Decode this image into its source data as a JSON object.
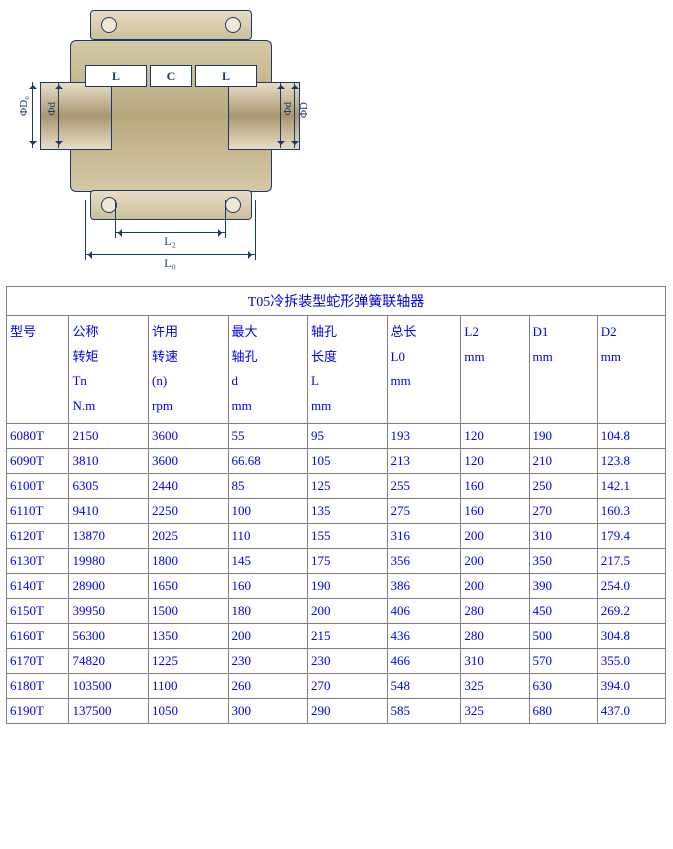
{
  "diagram": {
    "L_label_left": "L",
    "C_label": "C",
    "L_label_right": "L",
    "L2_label": "L₂",
    "L0_label": "L₀",
    "phi_D0": "ΦD₀",
    "phi_d_left": "Φd",
    "phi_d_right": "Φd",
    "phi_D": "ΦD"
  },
  "table": {
    "title": "T05冷拆装型蛇形弹簧联轴器",
    "headers": {
      "model": "型号",
      "torque": "公称\n转矩\nTn\nN.m",
      "speed": "许用\n转速\n(n)\nrpm",
      "d": "最大\n轴孔\nd\nmm",
      "L": "轴孔\n长度\nL\nmm",
      "L0": "总长\nL0\nmm",
      "L2": "L2\nmm",
      "D1": "D1\nmm",
      "D2": "D2\nmm"
    },
    "rows": [
      [
        "6080T",
        "2150",
        "3600",
        "55",
        "95",
        "193",
        "120",
        "190",
        "104.8"
      ],
      [
        "6090T",
        "3810",
        "3600",
        "66.68",
        "105",
        "213",
        "120",
        "210",
        "123.8"
      ],
      [
        "6100T",
        "6305",
        "2440",
        "85",
        "125",
        "255",
        "160",
        "250",
        "142.1"
      ],
      [
        "6110T",
        "9410",
        "2250",
        "100",
        "135",
        "275",
        "160",
        "270",
        "160.3"
      ],
      [
        "6120T",
        "13870",
        "2025",
        "110",
        "155",
        "316",
        "200",
        "310",
        "179.4"
      ],
      [
        "6130T",
        "19980",
        "1800",
        "145",
        "175",
        "356",
        "200",
        "350",
        "217.5"
      ],
      [
        "6140T",
        "28900",
        "1650",
        "160",
        "190",
        "386",
        "200",
        "390",
        "254.0"
      ],
      [
        "6150T",
        "39950",
        "1500",
        "180",
        "200",
        "406",
        "280",
        "450",
        "269.2"
      ],
      [
        "6160T",
        "56300",
        "1350",
        "200",
        "215",
        "436",
        "280",
        "500",
        "304.8"
      ],
      [
        "6170T",
        "74820",
        "1225",
        "230",
        "230",
        "466",
        "310",
        "570",
        "355.0"
      ],
      [
        "6180T",
        "103500",
        "1100",
        "260",
        "270",
        "548",
        "325",
        "630",
        "394.0"
      ],
      [
        "6190T",
        "137500",
        "1050",
        "300",
        "290",
        "585",
        "325",
        "680",
        "437.0"
      ]
    ]
  },
  "style": {
    "link_color": "#0000ee",
    "border_color": "#808080",
    "diagram_line": "#1a3a6a"
  }
}
